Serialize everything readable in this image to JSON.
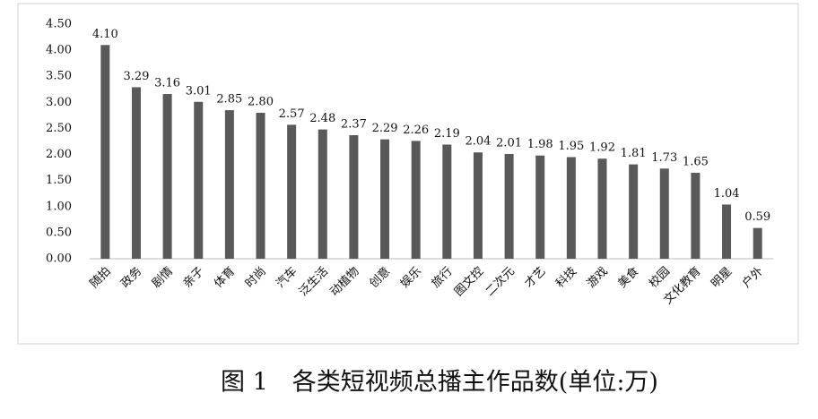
{
  "chart_data": {
    "type": "bar",
    "title": "图 1　各类短视频总播主作品数(单位:万)",
    "categories": [
      "随拍",
      "政务",
      "剧情",
      "亲子",
      "体育",
      "时尚",
      "汽车",
      "泛生活",
      "动植物",
      "创意",
      "娱乐",
      "旅行",
      "图文控",
      "二次元",
      "才艺",
      "科技",
      "游戏",
      "美食",
      "校园",
      "文化教育",
      "明星",
      "户外"
    ],
    "values": [
      4.1,
      3.29,
      3.16,
      3.01,
      2.85,
      2.8,
      2.57,
      2.48,
      2.37,
      2.29,
      2.26,
      2.19,
      2.04,
      2.01,
      1.98,
      1.95,
      1.92,
      1.81,
      1.73,
      1.65,
      1.04,
      0.59
    ],
    "value_labels": [
      "4.10",
      "3.29",
      "3.16",
      "3.01",
      "2.85",
      "2.80",
      "2.57",
      "2.48",
      "2.37",
      "2.29",
      "2.26",
      "2.19",
      "2.04",
      "2.01",
      "1.98",
      "1.95",
      "1.92",
      "1.81",
      "1.73",
      "1.65",
      "1.04",
      "0.59"
    ],
    "color": "#595959",
    "ylim": [
      0,
      4.5
    ],
    "yticks": [
      {
        "value": 0,
        "label": "0.00"
      },
      {
        "value": 0.5,
        "label": "0.50"
      },
      {
        "value": 1,
        "label": "1.00"
      },
      {
        "value": 1.5,
        "label": "1.50"
      },
      {
        "value": 2,
        "label": "2.00"
      },
      {
        "value": 2.5,
        "label": "2.50"
      },
      {
        "value": 3,
        "label": "3.00"
      },
      {
        "value": 3.5,
        "label": "3.50"
      },
      {
        "value": 4,
        "label": "4.00"
      },
      {
        "value": 4.5,
        "label": "4.50"
      }
    ],
    "grid": false
  }
}
